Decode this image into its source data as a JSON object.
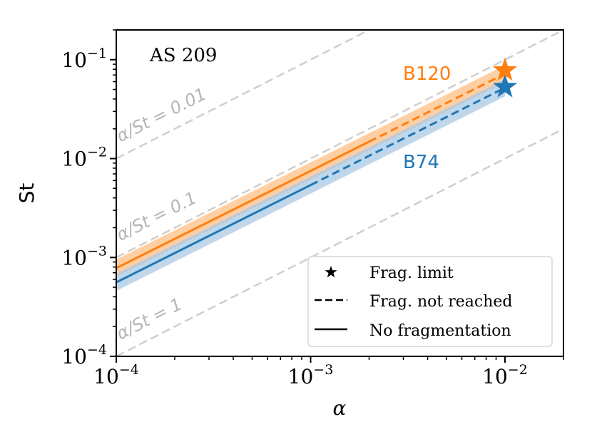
{
  "chart_data": {
    "type": "line",
    "title": "AS 209",
    "xlabel": "α",
    "ylabel": "St",
    "xscale": "log",
    "yscale": "log",
    "xlim": [
      0.0001,
      0.02
    ],
    "ylim": [
      0.0001,
      0.2
    ],
    "x_ticks": [
      {
        "value": 0.0001,
        "base": "10",
        "exp": "−4"
      },
      {
        "value": 0.001,
        "base": "10",
        "exp": "−3"
      },
      {
        "value": 0.01,
        "base": "10",
        "exp": "−2"
      }
    ],
    "y_ticks": [
      {
        "value": 0.0001,
        "base": "10",
        "exp": "−4"
      },
      {
        "value": 0.001,
        "base": "10",
        "exp": "−3"
      },
      {
        "value": 0.01,
        "base": "10",
        "exp": "−2"
      },
      {
        "value": 0.1,
        "base": "10",
        "exp": "−1"
      }
    ],
    "reference_lines": [
      {
        "ratio": 0.01,
        "label": "α/St = 0.01",
        "color": "#cfcfcf"
      },
      {
        "ratio": 0.1,
        "label": "α/St = 0.1",
        "color": "#cfcfcf"
      },
      {
        "ratio": 1,
        "label": "α/St = 1",
        "color": "#cfcfcf"
      }
    ],
    "series": [
      {
        "name": "B120",
        "color": "#ff7f0e",
        "band_color": "#ffbf86",
        "solid_x": [
          0.0001,
          0.002
        ],
        "dashed_x": [
          0.002,
          0.01
        ],
        "st_at_1e-4": 0.00078,
        "st_at_1e-2": 0.072,
        "band_factor": 1.22,
        "frag_limit": {
          "x": 0.01,
          "y": 0.078
        }
      },
      {
        "name": "B74",
        "color": "#1f77b4",
        "band_color": "#a9c9e5",
        "solid_x": [
          0.0001,
          0.001
        ],
        "dashed_x": [
          0.001,
          0.01
        ],
        "st_at_1e-4": 0.00056,
        "st_at_1e-2": 0.052,
        "band_factor": 1.22,
        "frag_limit": {
          "x": 0.01,
          "y": 0.053
        }
      }
    ],
    "legend": {
      "position": "bottom-right",
      "entries": [
        {
          "style": "star",
          "label": "Frag. limit"
        },
        {
          "style": "dashed",
          "label": "Frag. not reached"
        },
        {
          "style": "solid",
          "label": "No fragmentation"
        }
      ]
    }
  }
}
